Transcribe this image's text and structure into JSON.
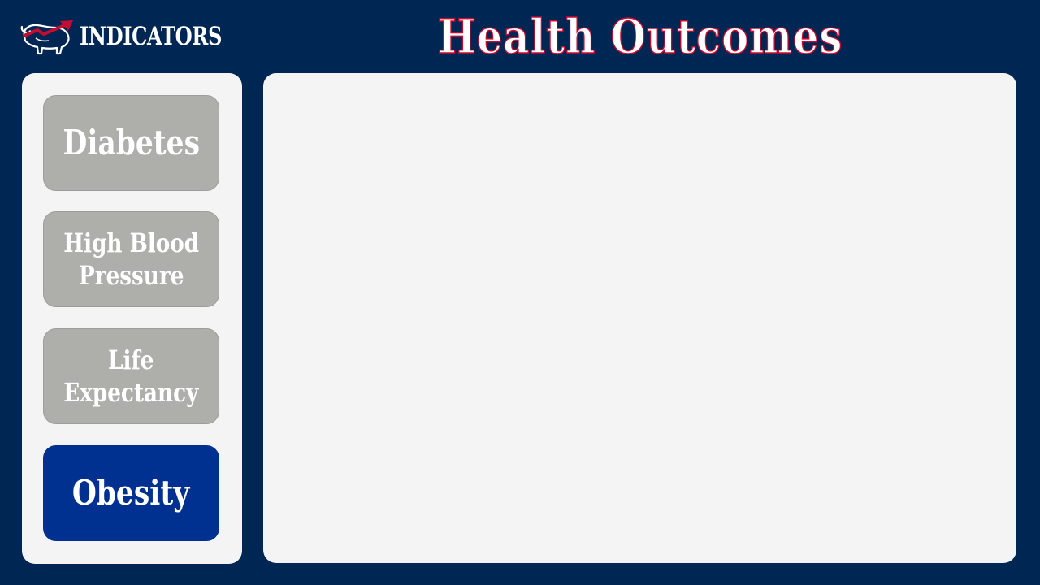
{
  "logo": {
    "text": "INDICATORS",
    "icon": "buffalo-arrow-icon"
  },
  "title": "Health Outcomes",
  "sidebar": {
    "items": [
      {
        "label": "Diabetes",
        "active": false
      },
      {
        "label": "High Blood\nPressure",
        "active": false
      },
      {
        "label": "Life\nExpectancy",
        "active": false
      },
      {
        "label": "Obesity",
        "active": true
      }
    ]
  },
  "colors": {
    "background": "#002654",
    "panel": "#f4f4f4",
    "button_inactive": "#aeafab",
    "button_active": "#003090",
    "accent_red": "#c60c30"
  }
}
